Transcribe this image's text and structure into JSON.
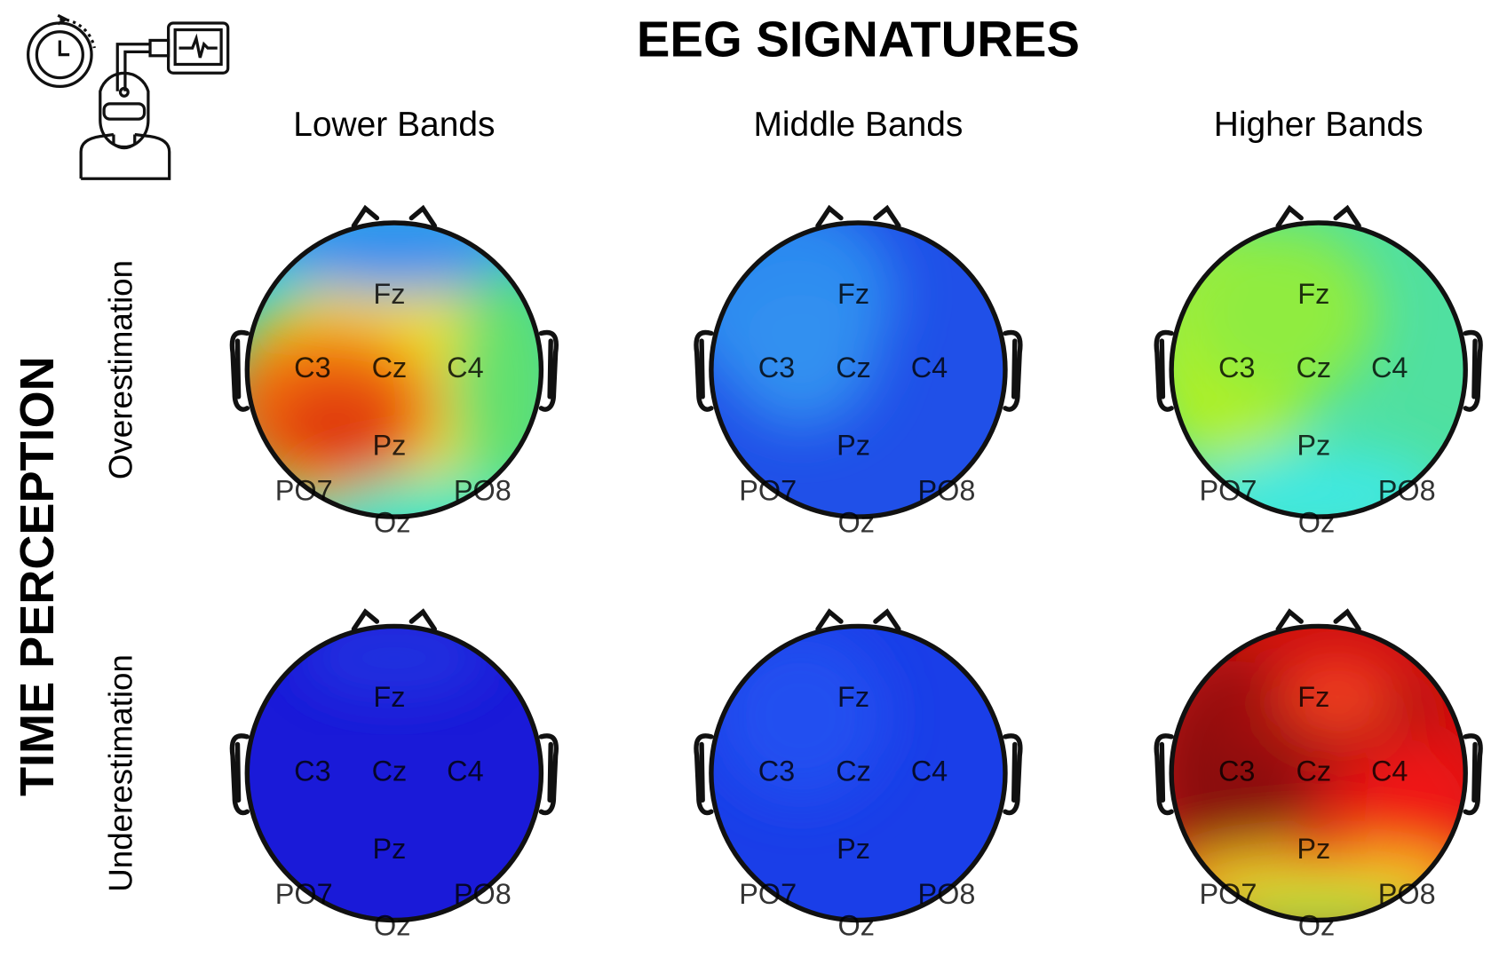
{
  "title": "EEG SIGNATURES",
  "side_label": "TIME PERCEPTION",
  "columns": [
    "Lower Bands",
    "Middle Bands",
    "Higher Bands"
  ],
  "rows": [
    "Overestimation",
    "Underestimation"
  ],
  "electrodes": [
    "Fz",
    "C3",
    "Cz",
    "C4",
    "Pz",
    "PO7",
    "PO8",
    "Oz"
  ]
}
